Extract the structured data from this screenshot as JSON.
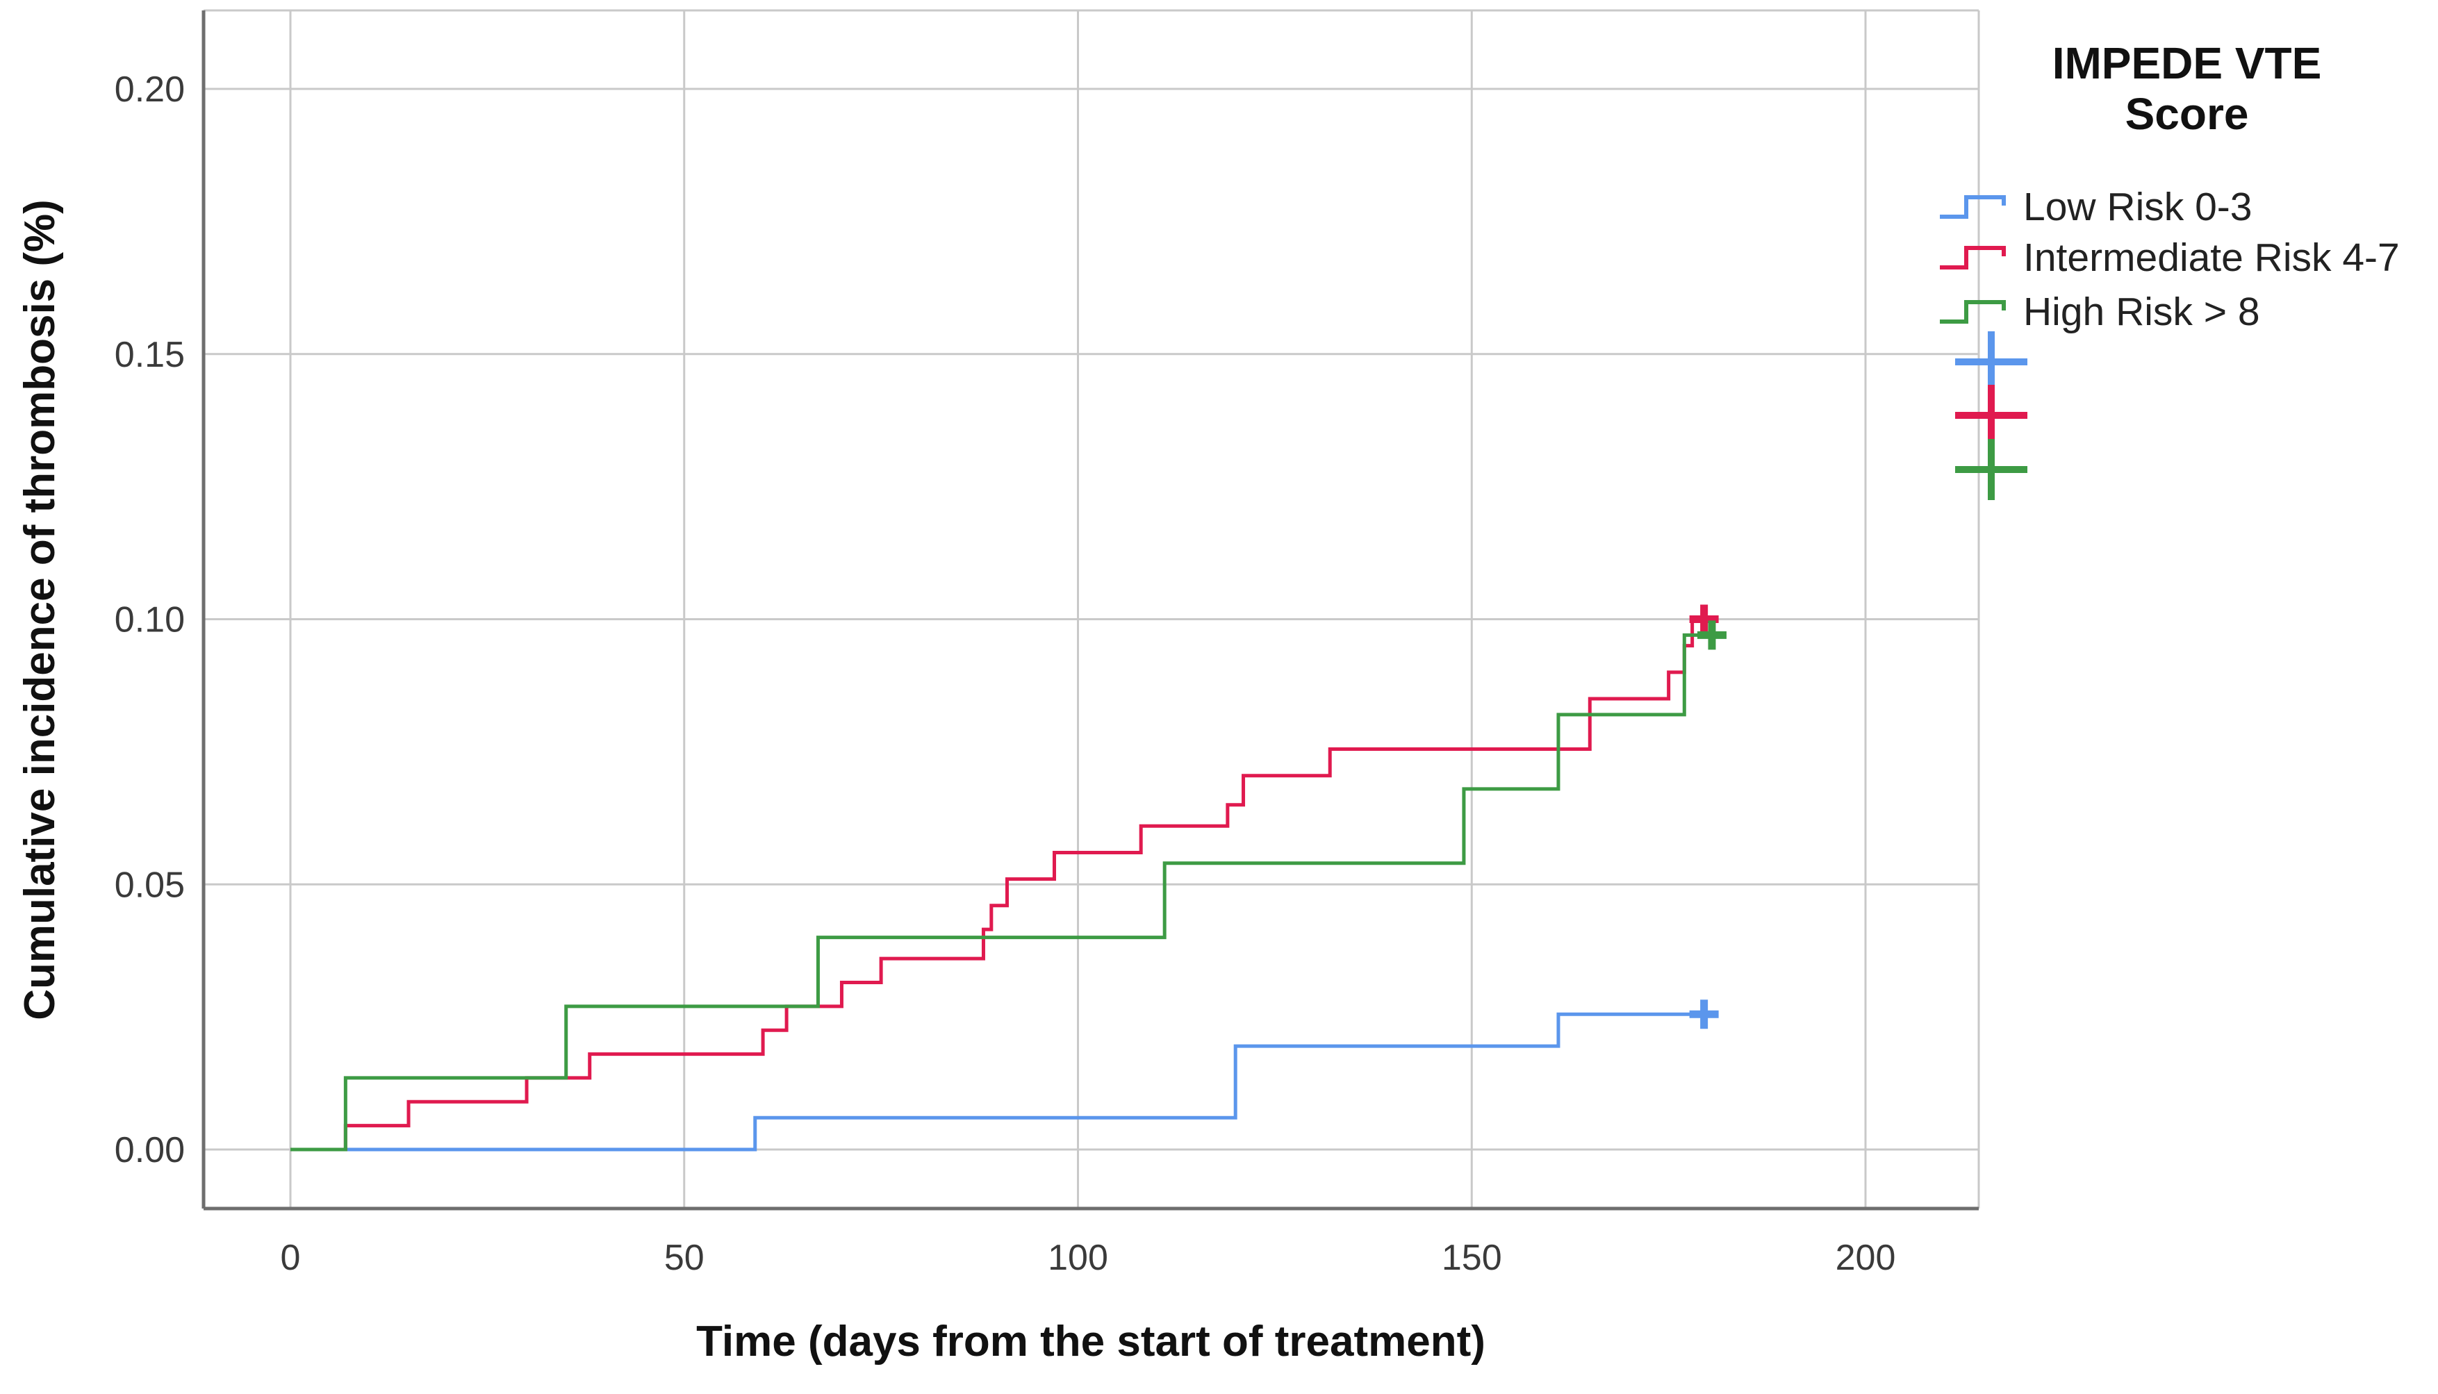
{
  "legend": {
    "title_line1": "IMPEDE VTE",
    "title_line2": "Score",
    "items": [
      {
        "label": "Low Risk 0-3",
        "color": "#5B96EC"
      },
      {
        "label": "Intermediate Risk 4-7",
        "color": "#E01A4F"
      },
      {
        "label": "High Risk > 8",
        "color": "#3D9B44"
      }
    ],
    "censor_markers": [
      {
        "color": "#5B96EC"
      },
      {
        "color": "#E01A4F"
      },
      {
        "color": "#3D9B44"
      }
    ]
  },
  "axes": {
    "x": {
      "title": "Time (days from the start of treatment)",
      "tick_labels": [
        "0",
        "50",
        "100",
        "150",
        "200"
      ]
    },
    "y": {
      "title": "Cumulative incidence of thrombosis  (%)",
      "tick_labels": [
        "0.00",
        "0.05",
        "0.10",
        "0.15",
        "0.20"
      ]
    }
  },
  "colors": {
    "grid": "#C9C9C9",
    "frame": "#C9C9C9",
    "axis": "#6E6E6E",
    "background": "#FFFFFF"
  },
  "chart_data": {
    "type": "line",
    "subtype": "cumulative-incidence-step",
    "title": "",
    "xlabel": "Time (days from the start of treatment)",
    "ylabel": "Cumulative incidence of thrombosis  (%)",
    "xlim": [
      -11,
      214
    ],
    "ylim": [
      -0.0115,
      0.2145
    ],
    "x_ticks": [
      0,
      50,
      100,
      150,
      200
    ],
    "y_ticks": [
      0.0,
      0.05,
      0.1,
      0.15,
      0.2
    ],
    "grid": true,
    "legend_position": "right",
    "series": [
      {
        "name": "Low Risk 0-3",
        "color": "#5B96EC",
        "points": [
          [
            0,
            0
          ],
          [
            59,
            0.006
          ],
          [
            120,
            0.0195
          ],
          [
            161,
            0.0255
          ]
        ],
        "censor": [
          179.5,
          0.0255
        ]
      },
      {
        "name": "Intermediate Risk 4-7",
        "color": "#E01A4F",
        "points": [
          [
            0,
            0
          ],
          [
            7,
            0.0045
          ],
          [
            15,
            0.009
          ],
          [
            30,
            0.0135
          ],
          [
            38,
            0.018
          ],
          [
            60,
            0.0225
          ],
          [
            63,
            0.027
          ],
          [
            70,
            0.0315
          ],
          [
            75,
            0.036
          ],
          [
            88,
            0.0415
          ],
          [
            89,
            0.046
          ],
          [
            91,
            0.051
          ],
          [
            97,
            0.056
          ],
          [
            108,
            0.061
          ],
          [
            119,
            0.065
          ],
          [
            121,
            0.0705
          ],
          [
            132,
            0.0755
          ],
          [
            165,
            0.085
          ],
          [
            175,
            0.09
          ],
          [
            177,
            0.095
          ],
          [
            178,
            0.1
          ]
        ],
        "censor": [
          179.5,
          0.1
        ]
      },
      {
        "name": "High Risk > 8",
        "color": "#3D9B44",
        "points": [
          [
            0,
            0
          ],
          [
            7,
            0.0135
          ],
          [
            35,
            0.027
          ],
          [
            67,
            0.04
          ],
          [
            111,
            0.054
          ],
          [
            149,
            0.068
          ],
          [
            161,
            0.082
          ],
          [
            177,
            0.097
          ]
        ],
        "censor": [
          180.5,
          0.097
        ]
      }
    ]
  }
}
